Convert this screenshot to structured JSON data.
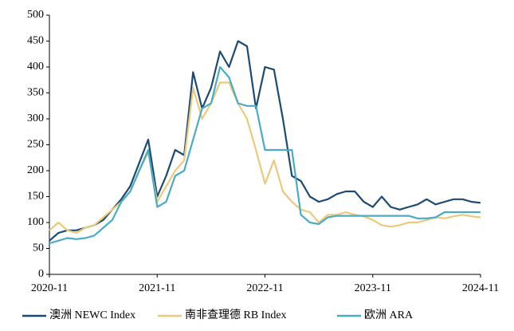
{
  "chart_data": {
    "type": "line",
    "x": [
      "2020-11",
      "2020-12",
      "2021-01",
      "2021-02",
      "2021-03",
      "2021-04",
      "2021-05",
      "2021-06",
      "2021-07",
      "2021-08",
      "2021-09",
      "2021-10",
      "2021-11",
      "2021-12",
      "2022-01",
      "2022-02",
      "2022-03",
      "2022-04",
      "2022-05",
      "2022-06",
      "2022-07",
      "2022-08",
      "2022-09",
      "2022-10",
      "2022-11",
      "2022-12",
      "2023-01",
      "2023-02",
      "2023-03",
      "2023-04",
      "2023-05",
      "2023-06",
      "2023-07",
      "2023-08",
      "2023-09",
      "2023-10",
      "2023-11",
      "2023-12",
      "2024-01",
      "2024-02",
      "2024-03",
      "2024-04",
      "2024-05",
      "2024-06",
      "2024-07",
      "2024-08",
      "2024-09",
      "2024-10",
      "2024-11"
    ],
    "xticks": [
      "2020-11",
      "2021-11",
      "2022-11",
      "2023-11",
      "2024-11"
    ],
    "ylim": [
      0,
      500
    ],
    "yticks": [
      0,
      50,
      100,
      150,
      200,
      250,
      300,
      350,
      400,
      450,
      500
    ],
    "series": [
      {
        "name": "澳洲 NEWC Index",
        "color": "#1b4a72",
        "values": [
          65,
          80,
          85,
          85,
          90,
          95,
          105,
          125,
          145,
          170,
          215,
          260,
          150,
          190,
          240,
          230,
          390,
          320,
          360,
          430,
          400,
          450,
          440,
          320,
          400,
          395,
          300,
          190,
          180,
          150,
          140,
          145,
          155,
          160,
          160,
          140,
          130,
          150,
          130,
          125,
          130,
          135,
          145,
          135,
          140,
          145,
          145,
          140,
          138
        ]
      },
      {
        "name": "南非查理德 RB Index",
        "color": "#ecc97a",
        "values": [
          85,
          100,
          85,
          80,
          90,
          95,
          110,
          125,
          140,
          160,
          200,
          235,
          140,
          170,
          200,
          220,
          360,
          300,
          330,
          370,
          370,
          330,
          300,
          240,
          175,
          220,
          160,
          140,
          125,
          120,
          100,
          115,
          115,
          120,
          115,
          112,
          105,
          95,
          92,
          95,
          100,
          100,
          105,
          110,
          108,
          112,
          115,
          112,
          110
        ]
      },
      {
        "name": "欧洲 ARA",
        "color": "#4aabc4",
        "values": [
          60,
          65,
          70,
          68,
          70,
          75,
          90,
          105,
          140,
          160,
          200,
          240,
          130,
          140,
          190,
          200,
          260,
          320,
          330,
          400,
          380,
          330,
          325,
          325,
          240,
          240,
          240,
          240,
          115,
          100,
          97,
          110,
          113,
          113,
          113,
          113,
          113,
          113,
          113,
          113,
          113,
          108,
          108,
          110,
          120,
          120,
          120,
          120,
          120
        ]
      }
    ]
  }
}
